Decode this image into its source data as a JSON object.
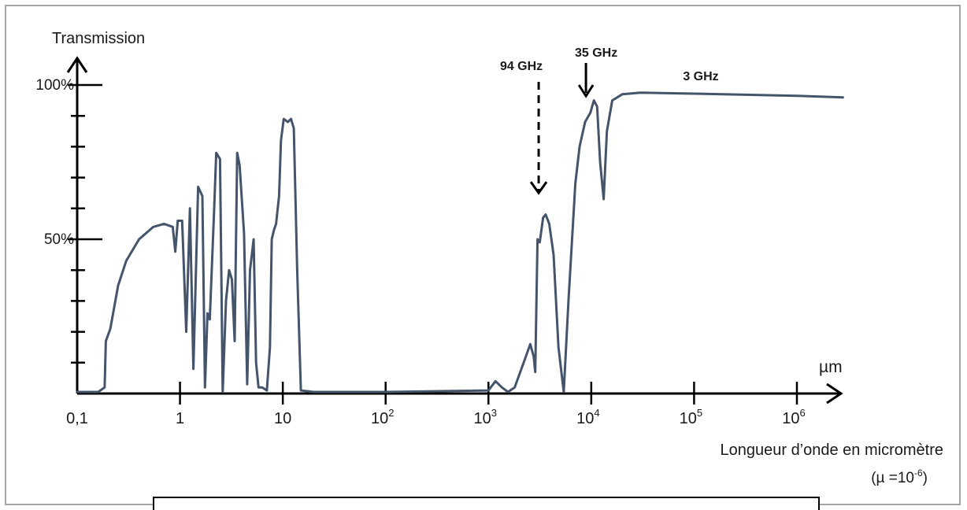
{
  "chart_data": {
    "type": "line",
    "ylabel": "Transmission",
    "xlabel": "Longueur d’onde en micromètre",
    "unit_note": "(µ =10",
    "unit_exp": "-6",
    "unit_close": ")",
    "x_unit": "µm",
    "x_scale": "log",
    "xlim": [
      0.1,
      3000000
    ],
    "ylim": [
      0,
      100
    ],
    "y_ticks": [
      {
        "value": 100,
        "label": "100%"
      },
      {
        "value": 50,
        "label": "50%"
      }
    ],
    "x_ticks": [
      {
        "value": 0.1,
        "base": "0,1",
        "exp": ""
      },
      {
        "value": 1,
        "base": "1",
        "exp": ""
      },
      {
        "value": 10,
        "base": "10",
        "exp": ""
      },
      {
        "value": 100,
        "base": "10",
        "exp": "2"
      },
      {
        "value": 1000,
        "base": "10",
        "exp": "3"
      },
      {
        "value": 10000,
        "base": "10",
        "exp": "4"
      },
      {
        "value": 100000,
        "base": "10",
        "exp": "5"
      },
      {
        "value": 1000000,
        "base": "10",
        "exp": "6"
      }
    ],
    "annotations": [
      {
        "text": "94 GHz",
        "x": 3190,
        "y": 64,
        "style": "dashed-arrow"
      },
      {
        "text": "35 GHz",
        "x": 8570,
        "y": 94,
        "style": "arrow"
      },
      {
        "text": "3 GHz",
        "x": 100000,
        "y": 100,
        "style": "label"
      }
    ],
    "series": [
      {
        "color": "#44546a",
        "points": [
          [
            0.1,
            0.5
          ],
          [
            0.16,
            0.5
          ],
          [
            0.185,
            2
          ],
          [
            0.19,
            17
          ],
          [
            0.21,
            21
          ],
          [
            0.25,
            35
          ],
          [
            0.3,
            43
          ],
          [
            0.4,
            50
          ],
          [
            0.55,
            54
          ],
          [
            0.7,
            55
          ],
          [
            0.85,
            54
          ],
          [
            0.9,
            46
          ],
          [
            0.95,
            56
          ],
          [
            1.05,
            56
          ],
          [
            1.15,
            20
          ],
          [
            1.25,
            60
          ],
          [
            1.35,
            8
          ],
          [
            1.5,
            67
          ],
          [
            1.65,
            64
          ],
          [
            1.75,
            2
          ],
          [
            1.85,
            26
          ],
          [
            1.95,
            24
          ],
          [
            2.15,
            60
          ],
          [
            2.25,
            78
          ],
          [
            2.45,
            76
          ],
          [
            2.6,
            0.5
          ],
          [
            2.8,
            30
          ],
          [
            3.0,
            40
          ],
          [
            3.2,
            37
          ],
          [
            3.4,
            17
          ],
          [
            3.6,
            78
          ],
          [
            3.8,
            74
          ],
          [
            4.2,
            52
          ],
          [
            4.5,
            3
          ],
          [
            4.8,
            40
          ],
          [
            5.2,
            50
          ],
          [
            5.5,
            10
          ],
          [
            5.8,
            2
          ],
          [
            6.3,
            2
          ],
          [
            7.0,
            1
          ],
          [
            7.5,
            15
          ],
          [
            7.8,
            50
          ],
          [
            8.2,
            53
          ],
          [
            8.6,
            55
          ],
          [
            9.2,
            64
          ],
          [
            9.6,
            82
          ],
          [
            10.2,
            89
          ],
          [
            11.2,
            88
          ],
          [
            12,
            89
          ],
          [
            12.8,
            86
          ],
          [
            13.8,
            40
          ],
          [
            15,
            1
          ],
          [
            20,
            0.5
          ],
          [
            100,
            0.5
          ],
          [
            1000,
            1
          ],
          [
            1170,
            4
          ],
          [
            1350,
            2
          ],
          [
            1550,
            0.5
          ],
          [
            1800,
            2
          ],
          [
            2200,
            10
          ],
          [
            2550,
            16
          ],
          [
            2750,
            12
          ],
          [
            2850,
            7
          ],
          [
            3000,
            50
          ],
          [
            3150,
            49
          ],
          [
            3400,
            57
          ],
          [
            3600,
            58
          ],
          [
            3900,
            55
          ],
          [
            4300,
            45
          ],
          [
            4800,
            15
          ],
          [
            5400,
            0.5
          ],
          [
            6000,
            30
          ],
          [
            7000,
            68
          ],
          [
            7700,
            80
          ],
          [
            8700,
            88
          ],
          [
            9800,
            91
          ],
          [
            10600,
            95
          ],
          [
            11400,
            93
          ],
          [
            12200,
            75
          ],
          [
            13200,
            63
          ],
          [
            14200,
            85
          ],
          [
            16000,
            95
          ],
          [
            20000,
            97
          ],
          [
            30000,
            97.5
          ],
          [
            100000,
            97.2
          ],
          [
            1000000,
            96.5
          ],
          [
            2800000,
            96
          ]
        ]
      }
    ]
  }
}
